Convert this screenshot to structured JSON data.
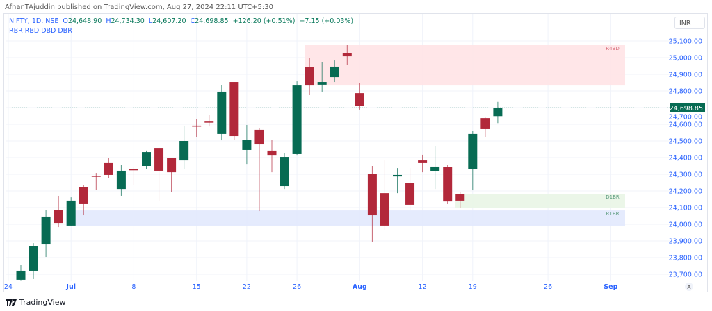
{
  "publisher_line": "AfnanTAjuddin published on TradingView.com, Aug 27, 2024 22:11 UTC+5:30",
  "legend": {
    "symbol": "NIFTY, 1D, NSE",
    "open": "24,648.90",
    "high": "24,734.30",
    "low": "24,607.20",
    "close": "24,698.85",
    "change": "+126.20 (+0.51%)",
    "change2": "+7.15 (+0.03%)"
  },
  "indicator_label": "RBR RBD DBD DBR",
  "currency": "INR",
  "last_price_label": "24,698.85",
  "auto_scale_label": "A",
  "brand": "TradingView",
  "colors": {
    "up": "#076b53",
    "down": "#b2283a",
    "zone_supply": "#ffe3e5",
    "zone_demand_green": "#e9f5e6",
    "zone_demand_blue": "#e2e9fd",
    "axis_text": "#2962ff"
  },
  "chart_data": {
    "type": "candlestick",
    "symbol": "NIFTY",
    "timeframe": "1D",
    "ylim": [
      23650,
      25150
    ],
    "y_ticks": [
      "25,100.00",
      "25,000.00",
      "24,900.00",
      "24,800.00",
      "24,700.00",
      "24,600.00",
      "24,500.00",
      "24,400.00",
      "24,300.00",
      "24,200.00",
      "24,100.00",
      "24,000.00",
      "23,900.00",
      "23,800.00",
      "23,700.00"
    ],
    "x_tick_labels": [
      "24",
      "Jul",
      "8",
      "15",
      "22",
      "26",
      "Aug",
      "12",
      "19",
      "26",
      "Sep"
    ],
    "candles": [
      {
        "date": "2024-06-25",
        "o": 23667,
        "h": 23754,
        "l": 23660,
        "c": 23721
      },
      {
        "date": "2024-06-26",
        "o": 23721,
        "h": 23887,
        "l": 23671,
        "c": 23867
      },
      {
        "date": "2024-06-27",
        "o": 23879,
        "h": 24087,
        "l": 23804,
        "c": 24046
      },
      {
        "date": "2024-06-28",
        "o": 24087,
        "h": 24171,
        "l": 23983,
        "c": 24008
      },
      {
        "date": "2024-07-01",
        "o": 23992,
        "h": 24162,
        "l": 23992,
        "c": 24142
      },
      {
        "date": "2024-07-02",
        "o": 24225,
        "h": 24237,
        "l": 24054,
        "c": 24121
      },
      {
        "date": "2024-07-03",
        "o": 24291,
        "h": 24308,
        "l": 24208,
        "c": 24286
      },
      {
        "date": "2024-07-04",
        "o": 24367,
        "h": 24400,
        "l": 24279,
        "c": 24296
      },
      {
        "date": "2024-07-05",
        "o": 24212,
        "h": 24358,
        "l": 24171,
        "c": 24321
      },
      {
        "date": "2024-07-08",
        "o": 24330,
        "h": 24342,
        "l": 24237,
        "c": 24325
      },
      {
        "date": "2024-07-09",
        "o": 24350,
        "h": 24442,
        "l": 24333,
        "c": 24433
      },
      {
        "date": "2024-07-10",
        "o": 24458,
        "h": 24460,
        "l": 24142,
        "c": 24321
      },
      {
        "date": "2024-07-11",
        "o": 24396,
        "h": 24400,
        "l": 24192,
        "c": 24312
      },
      {
        "date": "2024-07-12",
        "o": 24383,
        "h": 24592,
        "l": 24333,
        "c": 24500
      },
      {
        "date": "2024-07-15",
        "o": 24592,
        "h": 24633,
        "l": 24521,
        "c": 24587
      },
      {
        "date": "2024-07-16",
        "o": 24616,
        "h": 24658,
        "l": 24587,
        "c": 24613
      },
      {
        "date": "2024-07-18",
        "o": 24542,
        "h": 24837,
        "l": 24504,
        "c": 24796
      },
      {
        "date": "2024-07-19",
        "o": 24854,
        "h": 24854,
        "l": 24508,
        "c": 24529
      },
      {
        "date": "2024-07-22",
        "o": 24446,
        "h": 24596,
        "l": 24362,
        "c": 24508
      },
      {
        "date": "2024-07-23",
        "o": 24567,
        "h": 24579,
        "l": 24079,
        "c": 24479
      },
      {
        "date": "2024-07-24",
        "o": 24442,
        "h": 24504,
        "l": 24312,
        "c": 24412
      },
      {
        "date": "2024-07-25",
        "o": 24229,
        "h": 24425,
        "l": 24212,
        "c": 24404
      },
      {
        "date": "2024-07-26",
        "o": 24421,
        "h": 24858,
        "l": 24412,
        "c": 24833
      },
      {
        "date": "2024-07-29",
        "o": 24942,
        "h": 24996,
        "l": 24775,
        "c": 24833
      },
      {
        "date": "2024-07-30",
        "o": 24838,
        "h": 24971,
        "l": 24796,
        "c": 24854
      },
      {
        "date": "2024-07-31",
        "o": 24883,
        "h": 24983,
        "l": 24854,
        "c": 24946
      },
      {
        "date": "2024-08-01",
        "o": 25029,
        "h": 25075,
        "l": 24958,
        "c": 25008
      },
      {
        "date": "2024-08-02",
        "o": 24787,
        "h": 24850,
        "l": 24688,
        "c": 24712
      },
      {
        "date": "2024-08-05",
        "o": 24300,
        "h": 24350,
        "l": 23896,
        "c": 24054
      },
      {
        "date": "2024-08-06",
        "o": 24187,
        "h": 24383,
        "l": 23963,
        "c": 23992
      },
      {
        "date": "2024-08-07",
        "o": 24287,
        "h": 24337,
        "l": 24187,
        "c": 24296
      },
      {
        "date": "2024-08-08",
        "o": 24250,
        "h": 24337,
        "l": 24083,
        "c": 24117
      },
      {
        "date": "2024-08-09",
        "o": 24383,
        "h": 24417,
        "l": 24312,
        "c": 24367
      },
      {
        "date": "2024-08-12",
        "o": 24317,
        "h": 24471,
        "l": 24212,
        "c": 24346
      },
      {
        "date": "2024-08-13",
        "o": 24342,
        "h": 24358,
        "l": 24121,
        "c": 24137
      },
      {
        "date": "2024-08-14",
        "o": 24183,
        "h": 24196,
        "l": 24100,
        "c": 24142
      },
      {
        "date": "2024-08-16",
        "o": 24333,
        "h": 24562,
        "l": 24204,
        "c": 24542
      },
      {
        "date": "2024-08-19",
        "o": 24637,
        "h": 24640,
        "l": 24521,
        "c": 24571
      },
      {
        "date": "2024-08-20",
        "o": 24648.9,
        "h": 24734.3,
        "l": 24607.2,
        "c": 24698.85
      }
    ],
    "last_price": 24698.85,
    "zones": [
      {
        "label": "R4BD",
        "from_date": "2024-07-29",
        "top": 25075,
        "bottom": 24833,
        "kind": "supply"
      },
      {
        "label": "D1BR",
        "from_date": "2024-08-14",
        "top": 24183,
        "bottom": 24100,
        "kind": "demand_green"
      },
      {
        "label": "R1BR",
        "from_date": "2024-07-01",
        "top": 24083,
        "bottom": 23988,
        "kind": "demand_blue"
      }
    ],
    "grid": true
  }
}
